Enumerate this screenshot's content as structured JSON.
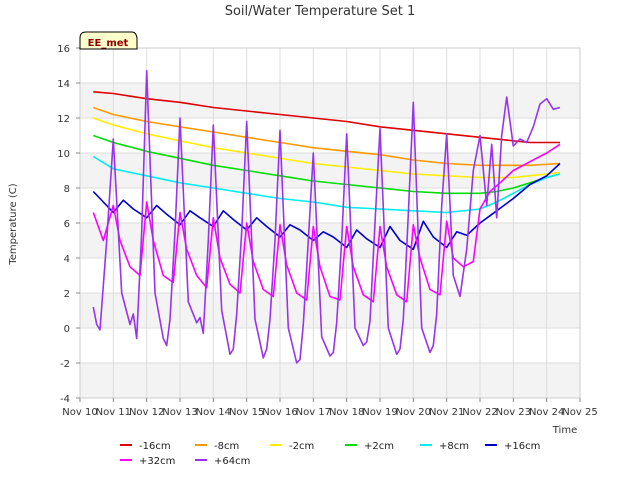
{
  "chart_data": {
    "type": "line",
    "title": "Soil/Water Temperature Set 1",
    "xlabel": "Time",
    "ylabel": "Temperature (C)",
    "badge": "EE_met",
    "xlim": [
      10,
      25
    ],
    "ylim": [
      -4,
      16
    ],
    "xticks": [
      {
        "v": 10,
        "label": "Nov 10"
      },
      {
        "v": 11,
        "label": "Nov 11"
      },
      {
        "v": 12,
        "label": "Nov 12"
      },
      {
        "v": 13,
        "label": "Nov 13"
      },
      {
        "v": 14,
        "label": "Nov 14"
      },
      {
        "v": 15,
        "label": "Nov 15"
      },
      {
        "v": 16,
        "label": "Nov 16"
      },
      {
        "v": 17,
        "label": "Nov 17"
      },
      {
        "v": 18,
        "label": "Nov 18"
      },
      {
        "v": 19,
        "label": "Nov 19"
      },
      {
        "v": 20,
        "label": "Nov 20"
      },
      {
        "v": 21,
        "label": "Nov 21"
      },
      {
        "v": 22,
        "label": "Nov 22"
      },
      {
        "v": 23,
        "label": "Nov 23"
      },
      {
        "v": 24,
        "label": "Nov 24"
      },
      {
        "v": 25,
        "label": "Nov 25"
      }
    ],
    "yticks": [
      {
        "v": -4,
        "label": "-4"
      },
      {
        "v": -2,
        "label": "-2"
      },
      {
        "v": 0,
        "label": "0"
      },
      {
        "v": 2,
        "label": "2"
      },
      {
        "v": 4,
        "label": "4"
      },
      {
        "v": 6,
        "label": "6"
      },
      {
        "v": 8,
        "label": "8"
      },
      {
        "v": 10,
        "label": "10"
      },
      {
        "v": 12,
        "label": "12"
      },
      {
        "v": 14,
        "label": "14"
      },
      {
        "v": 16,
        "label": "16"
      }
    ],
    "grid": true,
    "legend_position": "bottom",
    "series": [
      {
        "name": "-16cm",
        "color": "#dd0000",
        "x": [
          10.4,
          11,
          12,
          13,
          14,
          15,
          16,
          17,
          18,
          19,
          20,
          21,
          22,
          23,
          23.5,
          24.4
        ],
        "y": [
          13.5,
          13.4,
          13.1,
          12.9,
          12.6,
          12.4,
          12.2,
          12.0,
          11.8,
          11.5,
          11.3,
          11.1,
          10.9,
          10.7,
          10.6,
          10.6
        ]
      },
      {
        "name": "-8cm",
        "color": "#ff9900",
        "x": [
          10.4,
          11,
          12,
          13,
          14,
          15,
          16,
          17,
          18,
          19,
          20,
          21,
          22,
          23,
          23.5,
          24.4
        ],
        "y": [
          12.6,
          12.2,
          11.8,
          11.5,
          11.2,
          10.9,
          10.6,
          10.3,
          10.1,
          9.9,
          9.6,
          9.4,
          9.3,
          9.3,
          9.3,
          9.4
        ]
      },
      {
        "name": "-2cm",
        "color": "#ffee00",
        "x": [
          10.4,
          11,
          12,
          13,
          14,
          15,
          16,
          17,
          18,
          19,
          20,
          21,
          22,
          22.5,
          23,
          23.5,
          24,
          24.4
        ],
        "y": [
          12.0,
          11.6,
          11.1,
          10.7,
          10.3,
          10.0,
          9.7,
          9.4,
          9.2,
          9.0,
          8.8,
          8.7,
          8.6,
          8.6,
          8.6,
          8.7,
          8.8,
          8.9
        ]
      },
      {
        "name": "+2cm",
        "color": "#00dd00",
        "x": [
          10.4,
          11,
          12,
          13,
          14,
          15,
          16,
          17,
          18,
          19,
          20,
          21,
          22,
          22.5,
          23,
          23.5,
          24,
          24.4
        ],
        "y": [
          11.0,
          10.6,
          10.1,
          9.7,
          9.3,
          9.0,
          8.7,
          8.4,
          8.2,
          8.0,
          7.8,
          7.7,
          7.7,
          7.8,
          8.0,
          8.3,
          8.6,
          8.8
        ]
      },
      {
        "name": "+8cm",
        "color": "#00eeee",
        "x": [
          10.4,
          11,
          12,
          13,
          14,
          15,
          16,
          17,
          18,
          19,
          20,
          21,
          22,
          22.5,
          23,
          23.5,
          24,
          24.4
        ],
        "y": [
          9.8,
          9.1,
          8.7,
          8.3,
          8.0,
          7.7,
          7.4,
          7.2,
          6.9,
          6.8,
          6.7,
          6.6,
          6.8,
          7.2,
          7.7,
          8.2,
          8.6,
          8.8
        ]
      },
      {
        "name": "+16cm",
        "color": "#0000cc",
        "x": [
          10.4,
          10.7,
          11.0,
          11.3,
          11.6,
          12.0,
          12.3,
          12.6,
          13.0,
          13.3,
          13.6,
          14.0,
          14.3,
          14.6,
          15.0,
          15.3,
          15.6,
          16.0,
          16.3,
          16.6,
          17.0,
          17.3,
          17.6,
          18.0,
          18.3,
          18.6,
          19.0,
          19.3,
          19.6,
          20.0,
          20.3,
          20.6,
          21.0,
          21.3,
          21.6,
          22.0,
          22.5,
          23.0,
          23.5,
          24.0,
          24.4
        ],
        "y": [
          7.8,
          7.2,
          6.6,
          7.3,
          6.8,
          6.3,
          7.0,
          6.5,
          5.9,
          6.7,
          6.3,
          5.8,
          6.7,
          6.2,
          5.6,
          6.3,
          5.8,
          5.2,
          5.9,
          5.6,
          5.0,
          5.5,
          5.2,
          4.6,
          5.6,
          5.1,
          4.6,
          5.8,
          5.0,
          4.5,
          6.1,
          5.2,
          4.6,
          5.5,
          5.3,
          6.0,
          6.7,
          7.4,
          8.2,
          8.7,
          9.4
        ]
      },
      {
        "name": "+32cm",
        "color": "#ff00ff",
        "x": [
          10.4,
          10.7,
          11.0,
          11.2,
          11.5,
          11.8,
          12.0,
          12.2,
          12.5,
          12.8,
          13.0,
          13.2,
          13.5,
          13.8,
          14.0,
          14.2,
          14.5,
          14.8,
          15.0,
          15.2,
          15.5,
          15.8,
          16.0,
          16.2,
          16.5,
          16.8,
          17.0,
          17.2,
          17.5,
          17.8,
          18.0,
          18.2,
          18.5,
          18.8,
          19.0,
          19.2,
          19.5,
          19.8,
          20.0,
          20.2,
          20.5,
          20.8,
          21.0,
          21.2,
          21.5,
          21.8,
          22.0,
          22.3,
          22.6,
          23.0,
          23.5,
          24.0,
          24.4
        ],
        "y": [
          6.6,
          5.0,
          7.0,
          5.0,
          3.5,
          3.0,
          7.2,
          5.0,
          3.0,
          2.6,
          6.6,
          4.5,
          3.0,
          2.3,
          6.3,
          4.0,
          2.5,
          2.0,
          6.0,
          3.8,
          2.2,
          1.8,
          5.9,
          3.6,
          2.0,
          1.6,
          5.8,
          3.5,
          1.8,
          1.6,
          5.8,
          3.5,
          1.9,
          1.5,
          5.8,
          3.5,
          1.9,
          1.5,
          5.9,
          4.0,
          2.2,
          1.9,
          6.1,
          4.0,
          3.5,
          3.8,
          6.8,
          7.8,
          8.3,
          9.0,
          9.5,
          10.0,
          10.5
        ]
      },
      {
        "name": "+64cm",
        "color": "#9933ee",
        "x": [
          10.4,
          10.5,
          10.6,
          10.8,
          11.0,
          11.25,
          11.5,
          11.6,
          11.7,
          11.85,
          12.0,
          12.25,
          12.5,
          12.6,
          12.7,
          12.85,
          13.0,
          13.25,
          13.5,
          13.6,
          13.7,
          13.85,
          14.0,
          14.25,
          14.5,
          14.6,
          14.7,
          14.85,
          15.0,
          15.25,
          15.5,
          15.6,
          15.7,
          15.85,
          16.0,
          16.25,
          16.5,
          16.6,
          16.7,
          16.85,
          17.0,
          17.25,
          17.5,
          17.6,
          17.7,
          17.85,
          18.0,
          18.25,
          18.5,
          18.6,
          18.7,
          18.85,
          19.0,
          19.25,
          19.5,
          19.6,
          19.7,
          19.85,
          20.0,
          20.25,
          20.5,
          20.6,
          20.7,
          20.85,
          21.0,
          21.2,
          21.4,
          21.6,
          21.8,
          22.0,
          22.2,
          22.35,
          22.5,
          22.65,
          22.8,
          23.0,
          23.2,
          23.4,
          23.6,
          23.8,
          24.0,
          24.2,
          24.4
        ],
        "y": [
          1.2,
          0.2,
          -0.1,
          5.0,
          10.8,
          2.0,
          0.2,
          0.8,
          -0.6,
          5.5,
          14.7,
          2.0,
          -0.6,
          -1.0,
          0.5,
          5.5,
          12.0,
          1.5,
          0.3,
          0.6,
          -0.3,
          5.0,
          11.6,
          1.0,
          -1.5,
          -1.2,
          0.8,
          5.5,
          11.8,
          0.5,
          -1.7,
          -1.2,
          0.5,
          5.0,
          11.3,
          0.0,
          -2.0,
          -1.8,
          0.2,
          5.0,
          10.0,
          -0.5,
          -1.6,
          -1.4,
          0.3,
          5.0,
          11.1,
          0.0,
          -1.0,
          -0.8,
          0.4,
          6.0,
          11.4,
          0.0,
          -1.5,
          -1.2,
          0.5,
          6.5,
          12.9,
          0.0,
          -1.4,
          -1.0,
          0.8,
          7.0,
          11.1,
          3.0,
          1.8,
          4.5,
          9.0,
          11.0,
          7.0,
          10.5,
          6.3,
          11.0,
          13.2,
          10.4,
          10.8,
          10.6,
          11.5,
          12.8,
          13.1,
          12.5,
          12.6
        ]
      }
    ]
  }
}
